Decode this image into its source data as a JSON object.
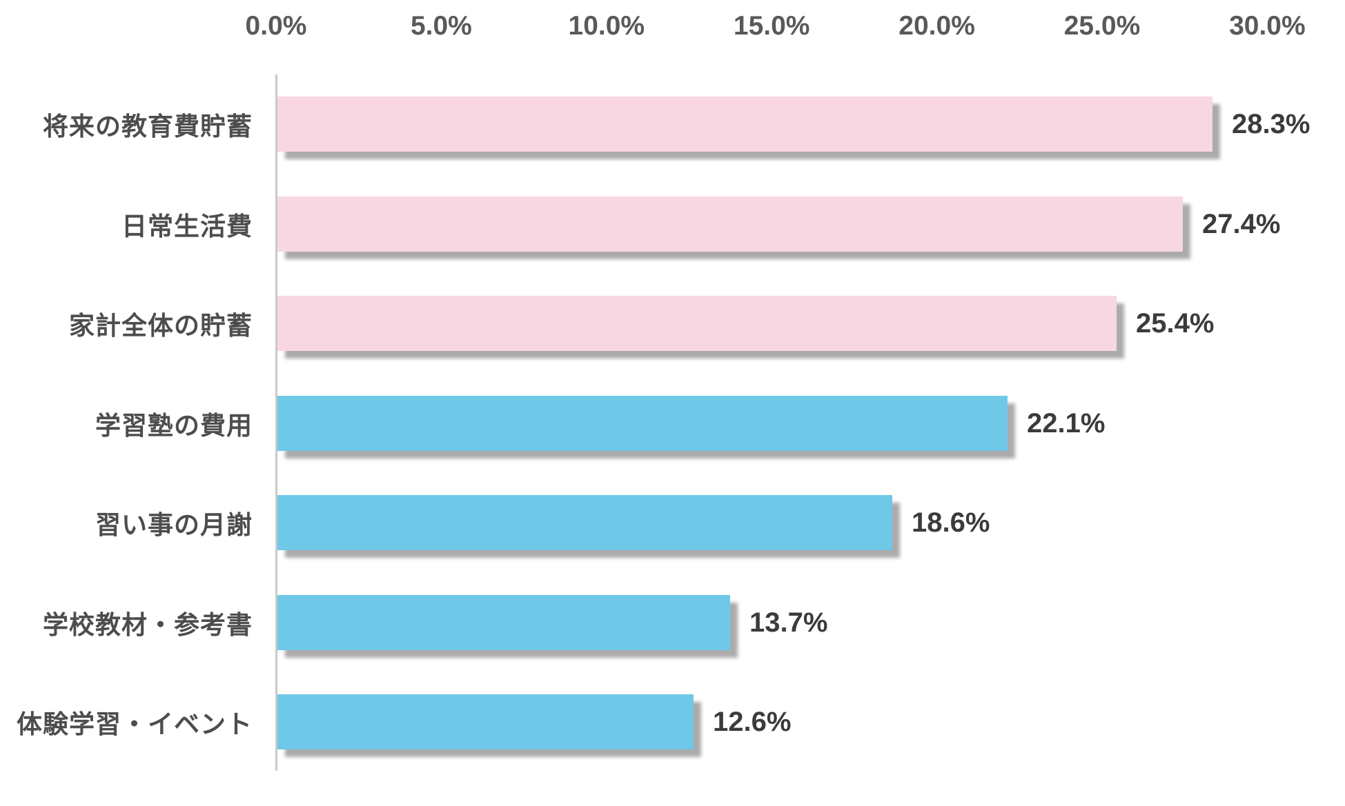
{
  "chart_data": {
    "type": "bar",
    "orientation": "horizontal",
    "title": "",
    "xlabel": "",
    "ylabel": "",
    "categories": [
      "将来の教育費貯蓄",
      "日常生活費",
      "家計全体の貯蓄",
      "学習塾の費用",
      "習い事の月謝",
      "学校教材・参考書",
      "体験学習・イベント"
    ],
    "values": [
      28.3,
      27.4,
      25.4,
      22.1,
      18.6,
      13.7,
      12.6
    ],
    "value_labels": [
      "28.3%",
      "27.4%",
      "25.4%",
      "22.1%",
      "18.6%",
      "13.7%",
      "12.6%"
    ],
    "bar_colors": [
      "#F8D7E3",
      "#F8D7E3",
      "#F8D7E3",
      "#6FC8E8",
      "#6FC8E8",
      "#6FC8E8",
      "#6FC8E8"
    ],
    "x_axis": {
      "position": "top",
      "min": 0,
      "max": 30,
      "tick_values": [
        0,
        5,
        10,
        15,
        20,
        25,
        30
      ],
      "tick_labels": [
        "0.0%",
        "5.0%",
        "10.0%",
        "15.0%",
        "20.0%",
        "25.0%",
        "30.0%"
      ]
    },
    "grid": false,
    "legend": false
  },
  "colors": {
    "bar_pink": "#F8D7E3",
    "bar_blue": "#6FC8E8",
    "tick_text": "#595959",
    "category_text": "#4D4D4D",
    "value_text": "#3B3B3B",
    "axis_line": "#C9C9C9",
    "background": "#FFFFFF"
  }
}
